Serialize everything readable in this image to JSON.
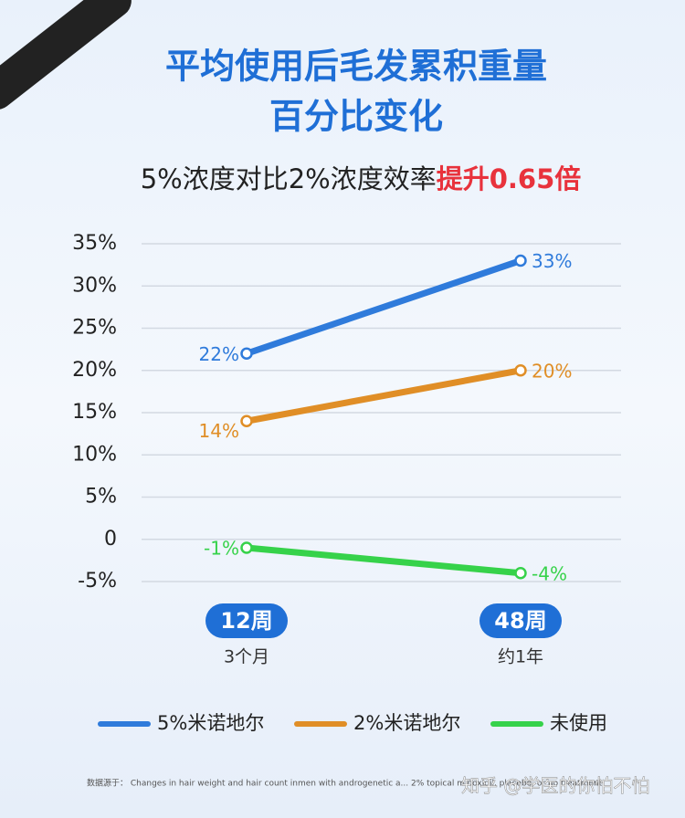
{
  "chart_data": {
    "type": "line",
    "title": [
      "平均使用后毛发累积重量",
      "百分比变化"
    ],
    "subtitle": "5%浓度对比2%浓度效率",
    "subtitle_highlight": "提升0.65倍",
    "categories": [
      "12周",
      "48周"
    ],
    "category_sublabels": [
      "3个月",
      "约1年"
    ],
    "series": [
      {
        "name": "5%米诺地尔",
        "color": "#2f7bdb",
        "values": [
          22,
          33
        ],
        "value_labels": [
          "22%",
          "33%"
        ]
      },
      {
        "name": "2%米诺地尔",
        "color": "#e08e26",
        "values": [
          14,
          20
        ],
        "value_labels": [
          "14%",
          "20%"
        ]
      },
      {
        "name": "未使用",
        "color": "#36d24a",
        "values": [
          -1,
          -4
        ],
        "value_labels": [
          "-1%",
          "-4%"
        ]
      }
    ],
    "ylim": [
      -5,
      35
    ],
    "yticks": [
      {
        "value": 35,
        "label": "35%"
      },
      {
        "value": 30,
        "label": "30%"
      },
      {
        "value": 25,
        "label": "25%"
      },
      {
        "value": 20,
        "label": "20%"
      },
      {
        "value": 15,
        "label": "15%"
      },
      {
        "value": 10,
        "label": "10%"
      },
      {
        "value": 5,
        "label": "5%"
      },
      0,
      {
        "value": -5,
        "label": "-5%"
      }
    ],
    "grid": true,
    "source": "数据源于：  Changes in hair weight and hair count inmen with androgenetic a... 2% topical minoxidil, placebo, or no treatment",
    "watermark": "知乎 @学医的你怕不怕"
  }
}
